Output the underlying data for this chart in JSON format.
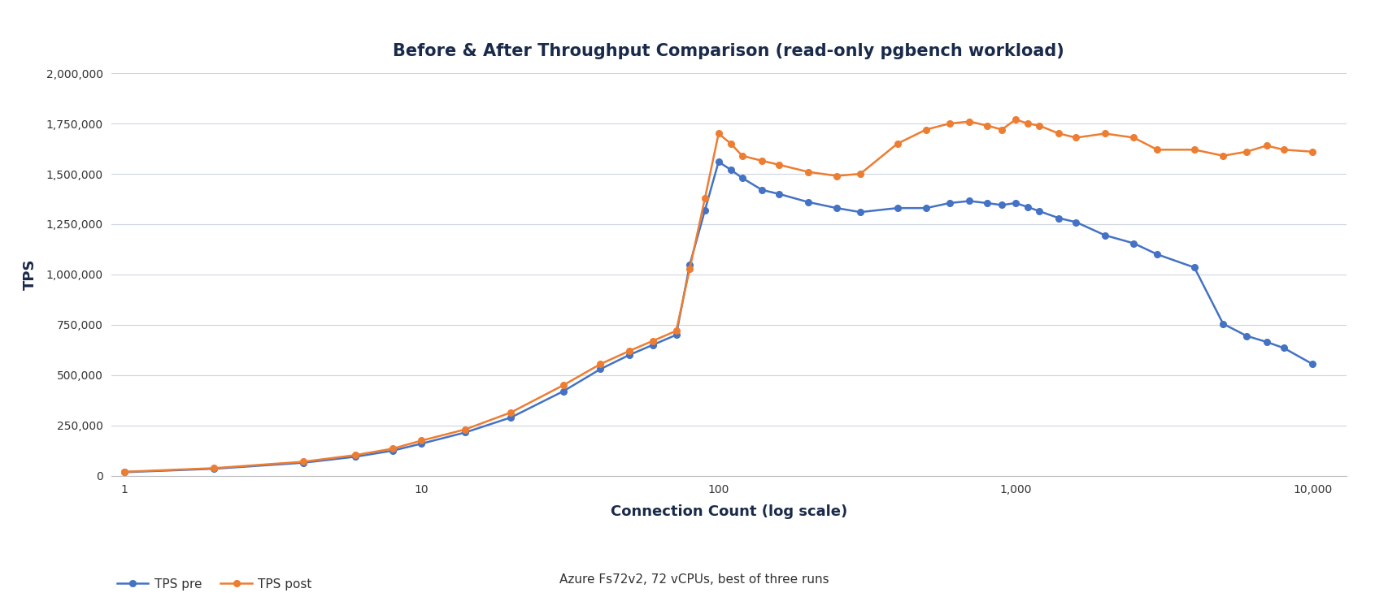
{
  "title": "Before & After Throughput Comparison (read-only pgbench workload)",
  "xlabel": "Connection Count (log scale)",
  "ylabel": "TPS",
  "subtitle": "Azure Fs72v2, 72 vCPUs, best of three runs",
  "background_color": "#ffffff",
  "grid_color": "#cdd5e0",
  "tps_pre_x": [
    1,
    2,
    4,
    6,
    8,
    10,
    14,
    20,
    30,
    40,
    50,
    60,
    72,
    80,
    90,
    100,
    110,
    120,
    140,
    160,
    200,
    250,
    300,
    400,
    500,
    600,
    700,
    800,
    900,
    1000,
    1100,
    1200,
    1400,
    1600,
    2000,
    2500,
    3000,
    4000,
    5000,
    6000,
    7000,
    8000,
    10000
  ],
  "tps_pre_y": [
    18000,
    35000,
    65000,
    95000,
    125000,
    160000,
    215000,
    290000,
    420000,
    530000,
    600000,
    650000,
    700000,
    1050000,
    1320000,
    1560000,
    1520000,
    1480000,
    1420000,
    1400000,
    1360000,
    1330000,
    1310000,
    1330000,
    1330000,
    1355000,
    1365000,
    1355000,
    1345000,
    1355000,
    1335000,
    1315000,
    1280000,
    1260000,
    1195000,
    1155000,
    1100000,
    1035000,
    755000,
    695000,
    665000,
    635000,
    555000
  ],
  "tps_post_x": [
    1,
    2,
    4,
    6,
    8,
    10,
    14,
    20,
    30,
    40,
    50,
    60,
    72,
    80,
    90,
    100,
    110,
    120,
    140,
    160,
    200,
    250,
    300,
    400,
    500,
    600,
    700,
    800,
    900,
    1000,
    1100,
    1200,
    1400,
    1600,
    2000,
    2500,
    3000,
    4000,
    5000,
    6000,
    7000,
    8000,
    10000
  ],
  "tps_post_y": [
    20000,
    38000,
    70000,
    103000,
    135000,
    175000,
    230000,
    315000,
    450000,
    555000,
    620000,
    670000,
    720000,
    1030000,
    1380000,
    1700000,
    1650000,
    1590000,
    1565000,
    1545000,
    1510000,
    1490000,
    1500000,
    1650000,
    1720000,
    1750000,
    1760000,
    1740000,
    1720000,
    1770000,
    1750000,
    1740000,
    1700000,
    1680000,
    1700000,
    1680000,
    1620000,
    1620000,
    1590000,
    1610000,
    1640000,
    1620000,
    1610000
  ],
  "pre_color": "#4472c4",
  "post_color": "#ed7d31",
  "ylim": [
    0,
    2000000
  ],
  "yticks": [
    0,
    250000,
    500000,
    750000,
    1000000,
    1250000,
    1500000,
    1750000,
    2000000
  ],
  "ytick_labels": [
    "0",
    "250,000",
    "500,000",
    "750,000",
    "1,000,000",
    "1,250,000",
    "1,500,000",
    "1,750,000",
    "2,000,000"
  ],
  "xticks": [
    1,
    10,
    100,
    1000,
    10000
  ],
  "xtick_labels": [
    "1",
    "10",
    "100",
    "1,000",
    "10,000"
  ],
  "title_fontsize": 15,
  "axis_label_fontsize": 13,
  "tick_fontsize": 10,
  "legend_fontsize": 11,
  "subtitle_fontsize": 11
}
